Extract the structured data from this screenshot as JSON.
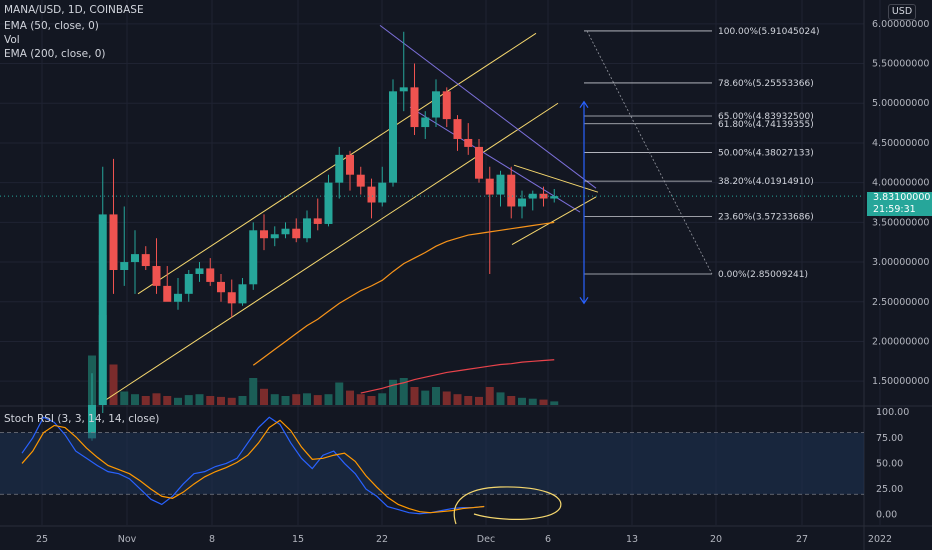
{
  "header": {
    "symbol_line": "MANA/USD, 1D, COINBASE",
    "indicator_1": "EMA (50, close, 0)",
    "indicator_2": "Vol",
    "indicator_3": "EMA (200, close, 0)",
    "oscillator_label": "Stoch RSI (3, 3, 14, 14, close)",
    "currency_button": "USD"
  },
  "last_price": {
    "value": "3.83100000",
    "countdown": "21:59:31"
  },
  "colors": {
    "background": "#131722",
    "up": "#26a69a",
    "down": "#ef5350",
    "vol_up": "#1b5e57",
    "vol_down": "#7b2c2c",
    "ema50": "#f7931a",
    "ema200": "#e9434b",
    "channel": "#f5d76e",
    "down_channel": "#7b6fd8",
    "fib_line": "#c9cbd2",
    "k_line": "#2962ff",
    "d_line": "#ff9800",
    "rsi_band": "#1d3354"
  },
  "fib_levels": [
    {
      "label": "100.00%(5.91045024)",
      "price": 5.91045024
    },
    {
      "label": "78.60%(5.25553366)",
      "price": 5.25553366
    },
    {
      "label": "65.00%(4.83932500)",
      "price": 4.839325
    },
    {
      "label": "61.80%(4.74139355)",
      "price": 4.74139355
    },
    {
      "label": "50.00%(4.38027133)",
      "price": 4.38027133
    },
    {
      "label": "38.20%(4.01914910)",
      "price": 4.0191491
    },
    {
      "label": "23.60%(3.57233686)",
      "price": 3.57233686
    },
    {
      "label": "0.00%(2.85009241)",
      "price": 2.85009241
    }
  ],
  "chart_data": {
    "type": "candlestick",
    "title": "MANA/USD, 1D, COINBASE",
    "price_axis": {
      "ticks": [
        "6.00000000",
        "5.50000000",
        "5.00000000",
        "4.50000000",
        "4.00000000",
        "3.50000000",
        "3.00000000",
        "2.50000000",
        "2.00000000",
        "1.50000000"
      ],
      "tick_values": [
        6.0,
        5.5,
        5.0,
        4.5,
        4.0,
        3.5,
        3.0,
        2.5,
        2.0,
        1.5
      ],
      "ylim": [
        1.2,
        6.3
      ]
    },
    "time_axis": {
      "labels": [
        "25",
        "Nov",
        "8",
        "15",
        "22",
        "Dec",
        "6",
        "13",
        "20",
        "27",
        "2022"
      ]
    },
    "candles": [
      {
        "o": 0.78,
        "h": 1.6,
        "l": 0.75,
        "c": 1.2
      },
      {
        "o": 1.2,
        "h": 4.2,
        "l": 1.1,
        "c": 3.6
      },
      {
        "o": 3.6,
        "h": 4.3,
        "l": 2.6,
        "c": 2.9
      },
      {
        "o": 2.9,
        "h": 3.7,
        "l": 2.7,
        "c": 3.0
      },
      {
        "o": 3.0,
        "h": 3.4,
        "l": 2.6,
        "c": 3.1
      },
      {
        "o": 3.1,
        "h": 3.2,
        "l": 2.9,
        "c": 2.95
      },
      {
        "o": 2.95,
        "h": 3.3,
        "l": 2.6,
        "c": 2.7
      },
      {
        "o": 2.7,
        "h": 2.95,
        "l": 2.55,
        "c": 2.5
      },
      {
        "o": 2.5,
        "h": 2.8,
        "l": 2.4,
        "c": 2.6
      },
      {
        "o": 2.6,
        "h": 2.9,
        "l": 2.5,
        "c": 2.85
      },
      {
        "o": 2.85,
        "h": 3.0,
        "l": 2.75,
        "c": 2.92
      },
      {
        "o": 2.92,
        "h": 3.05,
        "l": 2.7,
        "c": 2.75
      },
      {
        "o": 2.75,
        "h": 2.85,
        "l": 2.5,
        "c": 2.62
      },
      {
        "o": 2.62,
        "h": 2.78,
        "l": 2.3,
        "c": 2.48
      },
      {
        "o": 2.48,
        "h": 2.8,
        "l": 2.45,
        "c": 2.72
      },
      {
        "o": 2.72,
        "h": 3.5,
        "l": 2.65,
        "c": 3.4
      },
      {
        "o": 3.4,
        "h": 3.6,
        "l": 3.15,
        "c": 3.3
      },
      {
        "o": 3.3,
        "h": 3.45,
        "l": 3.2,
        "c": 3.35
      },
      {
        "o": 3.35,
        "h": 3.5,
        "l": 3.3,
        "c": 3.42
      },
      {
        "o": 3.42,
        "h": 3.55,
        "l": 3.25,
        "c": 3.3
      },
      {
        "o": 3.3,
        "h": 3.65,
        "l": 3.25,
        "c": 3.55
      },
      {
        "o": 3.55,
        "h": 3.8,
        "l": 3.4,
        "c": 3.48
      },
      {
        "o": 3.48,
        "h": 4.1,
        "l": 3.45,
        "c": 4.0
      },
      {
        "o": 4.0,
        "h": 4.45,
        "l": 3.8,
        "c": 4.35
      },
      {
        "o": 4.35,
        "h": 4.4,
        "l": 3.9,
        "c": 4.1
      },
      {
        "o": 4.1,
        "h": 4.2,
        "l": 3.85,
        "c": 3.95
      },
      {
        "o": 3.95,
        "h": 4.05,
        "l": 3.55,
        "c": 3.75
      },
      {
        "o": 3.75,
        "h": 4.2,
        "l": 3.7,
        "c": 4.0
      },
      {
        "o": 4.0,
        "h": 5.3,
        "l": 3.95,
        "c": 5.15
      },
      {
        "o": 5.15,
        "h": 5.9,
        "l": 4.9,
        "c": 5.2
      },
      {
        "o": 5.2,
        "h": 5.5,
        "l": 4.6,
        "c": 4.7
      },
      {
        "o": 4.7,
        "h": 4.9,
        "l": 4.55,
        "c": 4.82
      },
      {
        "o": 4.82,
        "h": 5.3,
        "l": 4.7,
        "c": 5.15
      },
      {
        "o": 5.15,
        "h": 5.2,
        "l": 4.7,
        "c": 4.8
      },
      {
        "o": 4.8,
        "h": 4.85,
        "l": 4.4,
        "c": 4.55
      },
      {
        "o": 4.55,
        "h": 4.75,
        "l": 4.35,
        "c": 4.45
      },
      {
        "o": 4.45,
        "h": 4.55,
        "l": 4.0,
        "c": 4.05
      },
      {
        "o": 4.05,
        "h": 4.2,
        "l": 2.85,
        "c": 3.85
      },
      {
        "o": 3.85,
        "h": 4.15,
        "l": 3.7,
        "c": 4.1
      },
      {
        "o": 4.1,
        "h": 4.2,
        "l": 3.55,
        "c": 3.7
      },
      {
        "o": 3.7,
        "h": 3.9,
        "l": 3.55,
        "c": 3.8
      },
      {
        "o": 3.8,
        "h": 3.9,
        "l": 3.65,
        "c": 3.86
      },
      {
        "o": 3.86,
        "h": 3.95,
        "l": 3.7,
        "c": 3.8
      },
      {
        "o": 3.8,
        "h": 3.92,
        "l": 3.75,
        "c": 3.83
      }
    ],
    "volume": [
      0.55,
      1.0,
      0.45,
      0.15,
      0.12,
      0.1,
      0.13,
      0.1,
      0.08,
      0.11,
      0.12,
      0.1,
      0.09,
      0.08,
      0.1,
      0.3,
      0.18,
      0.12,
      0.1,
      0.12,
      0.13,
      0.11,
      0.12,
      0.25,
      0.16,
      0.12,
      0.1,
      0.13,
      0.28,
      0.3,
      0.2,
      0.16,
      0.2,
      0.15,
      0.12,
      0.1,
      0.09,
      0.2,
      0.14,
      0.1,
      0.08,
      0.07,
      0.06,
      0.04
    ],
    "ema50": [
      null,
      null,
      null,
      null,
      null,
      null,
      null,
      null,
      null,
      null,
      null,
      null,
      null,
      null,
      null,
      1.7,
      1.8,
      1.9,
      2.0,
      2.1,
      2.2,
      2.28,
      2.38,
      2.48,
      2.56,
      2.64,
      2.7,
      2.77,
      2.88,
      2.98,
      3.05,
      3.12,
      3.2,
      3.26,
      3.3,
      3.34,
      3.36,
      3.38,
      3.4,
      3.42,
      3.44,
      3.46,
      3.48,
      3.5
    ],
    "ema200": [
      null,
      null,
      null,
      null,
      null,
      null,
      null,
      null,
      null,
      null,
      null,
      null,
      null,
      null,
      null,
      null,
      null,
      null,
      null,
      null,
      null,
      null,
      null,
      null,
      null,
      1.35,
      1.38,
      1.41,
      1.45,
      1.48,
      1.52,
      1.55,
      1.58,
      1.61,
      1.63,
      1.65,
      1.67,
      1.69,
      1.71,
      1.72,
      1.74,
      1.75,
      1.76,
      1.77
    ],
    "stoch_rsi": {
      "axis_ticks": [
        "100.00",
        "75.00",
        "50.00",
        "25.00",
        "0.00"
      ],
      "tick_values": [
        100,
        75,
        50,
        25,
        0
      ],
      "ylim": [
        -10,
        105
      ],
      "k": [
        60,
        75,
        95,
        90,
        78,
        62,
        55,
        48,
        42,
        40,
        35,
        25,
        15,
        10,
        18,
        30,
        40,
        42,
        47,
        50,
        55,
        70,
        85,
        95,
        88,
        70,
        55,
        45,
        58,
        62,
        50,
        40,
        25,
        18,
        8,
        5,
        2,
        1,
        2,
        4,
        6,
        7,
        7,
        8
      ],
      "d": [
        50,
        62,
        80,
        87,
        85,
        76,
        65,
        56,
        48,
        44,
        40,
        33,
        25,
        18,
        16,
        22,
        30,
        37,
        42,
        46,
        51,
        58,
        70,
        85,
        92,
        82,
        66,
        54,
        55,
        58,
        60,
        52,
        38,
        27,
        17,
        10,
        6,
        3,
        2,
        3,
        4,
        6,
        7,
        8
      ]
    }
  }
}
